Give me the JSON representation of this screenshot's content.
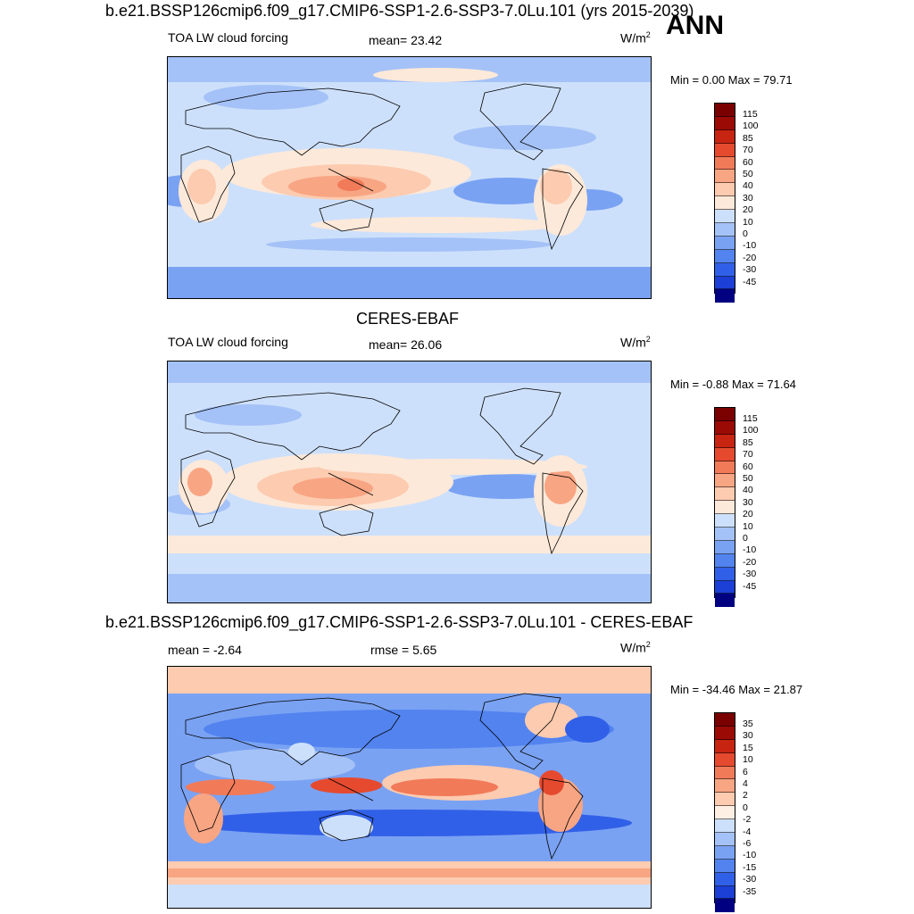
{
  "header": {
    "title": "b.e21.BSSP126cmip6.f09_g17.CMIP6-SSP1-2.6-SSP3-7.0Lu.101 (yrs 2015-2039)",
    "season": "ANN"
  },
  "panels": [
    {
      "variable": "TOA LW cloud forcing",
      "stat": "mean=  23.42",
      "units": "W/m",
      "units_sup": "2",
      "minmax": "Min =   0.00 Max =  79.71",
      "colorbar_levels": [
        "115",
        "100",
        "85",
        "70",
        "60",
        "50",
        "40",
        "30",
        "20",
        "10",
        "0",
        "-10",
        "-20",
        "-30",
        "-45"
      ]
    },
    {
      "title": "CERES-EBAF",
      "variable": "TOA LW cloud forcing",
      "stat": "mean=  26.06",
      "units": "W/m",
      "units_sup": "2",
      "minmax": "Min =  -0.88 Max =  71.64",
      "colorbar_levels": [
        "115",
        "100",
        "85",
        "70",
        "60",
        "50",
        "40",
        "30",
        "20",
        "10",
        "0",
        "-10",
        "-20",
        "-30",
        "-45"
      ]
    },
    {
      "title": "b.e21.BSSP126cmip6.f09_g17.CMIP6-SSP1-2.6-SSP3-7.0Lu.101 - CERES-EBAF",
      "stat": "mean =  -2.64",
      "rmse": "rmse =   5.65",
      "units": "W/m",
      "units_sup": "2",
      "minmax": "Min = -34.46 Max =  21.87",
      "colorbar_levels": [
        "35",
        "30",
        "15",
        "10",
        "6",
        "4",
        "2",
        "0",
        "-2",
        "-4",
        "-6",
        "-10",
        "-15",
        "-30",
        "-35"
      ]
    }
  ],
  "colors": {
    "field_scale": [
      "#000080",
      "#0a21b8",
      "#1c3fd6",
      "#3160e8",
      "#5283ef",
      "#7aa2f3",
      "#a4c2f7",
      "#cde0fb",
      "#fde9d9",
      "#fccbb0",
      "#f8a583",
      "#f17a59",
      "#e54a2f",
      "#c82412",
      "#9c0a06",
      "#7a0000"
    ],
    "diff_scale": [
      "#000080",
      "#0a21b8",
      "#1c3fd6",
      "#3160e8",
      "#5283ef",
      "#7aa2f3",
      "#a4c2f7",
      "#cde0fb",
      "#fdefe4",
      "#fccbb0",
      "#f8a583",
      "#f17a59",
      "#e54a2f",
      "#c82412",
      "#9c0a06",
      "#7a0000"
    ]
  }
}
